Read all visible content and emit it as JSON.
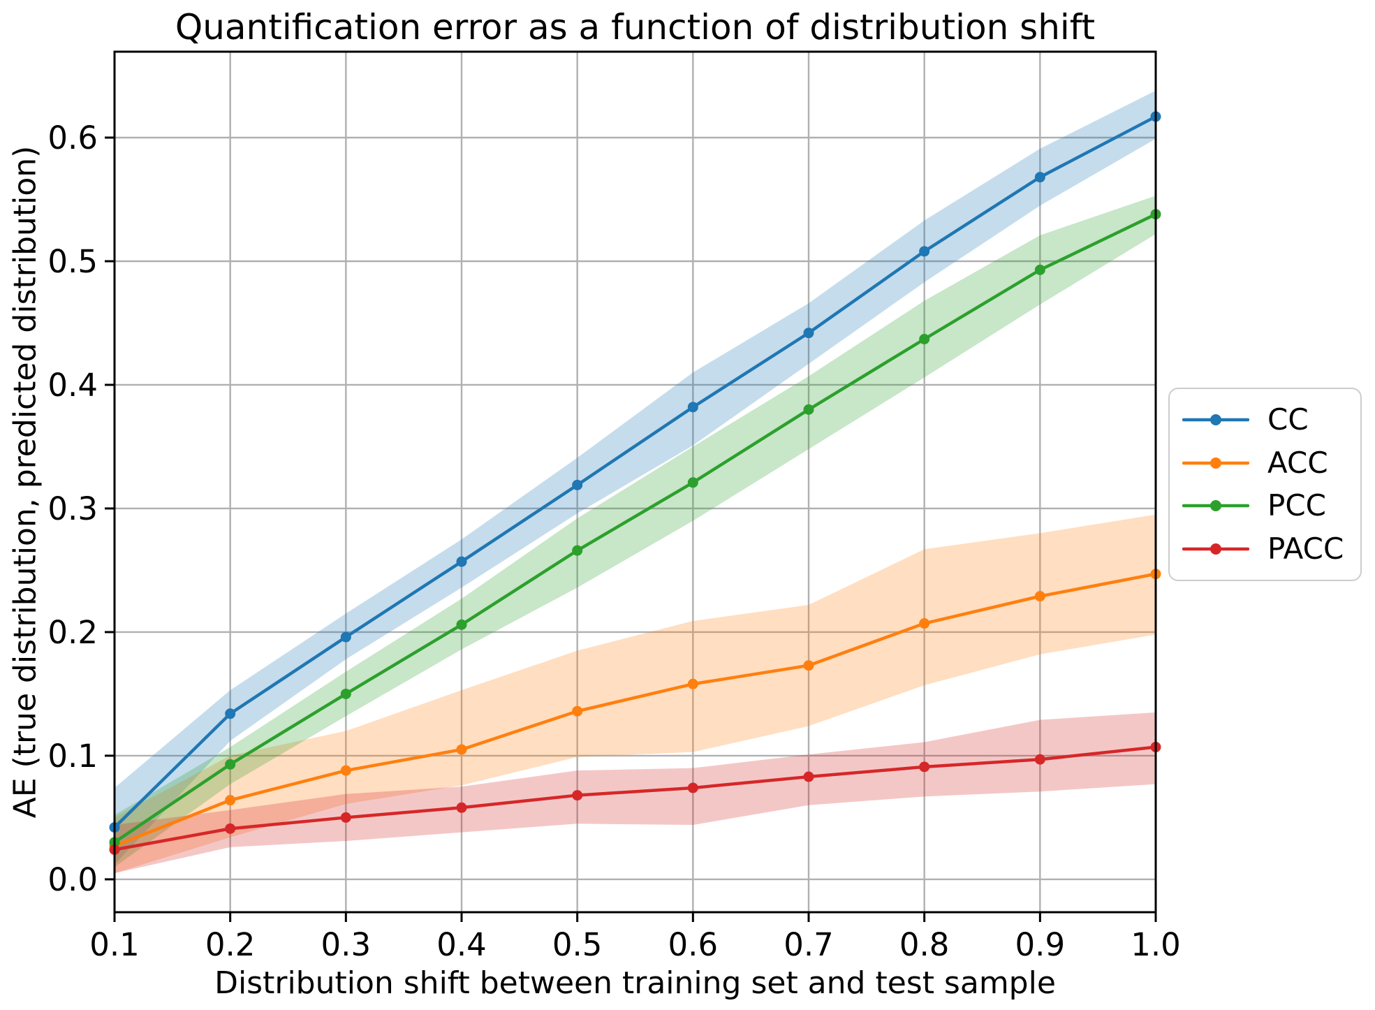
{
  "page": {
    "background_color": "#ffffff",
    "text_color": "#000000"
  },
  "chart_data": {
    "type": "line",
    "title": "Quantification error as a function of distribution shift",
    "xlabel": "Distribution shift between training set and test sample",
    "ylabel": "AE (true distribution, predicted distribution)",
    "grid": true,
    "grid_color": "#b0b0b0",
    "spine_color": "#000000",
    "background": "#ffffff",
    "xlim": [
      0.1,
      1.0
    ],
    "ylim": [
      -0.0266,
      0.6695
    ],
    "xticks": [
      0.1,
      0.2,
      0.3,
      0.4,
      0.5,
      0.6,
      0.7,
      0.8,
      0.9,
      1.0
    ],
    "xtick_labels": [
      "0.1",
      "0.2",
      "0.3",
      "0.4",
      "0.5",
      "0.6",
      "0.7",
      "0.8",
      "0.9",
      "1.0"
    ],
    "yticks": [
      0.0,
      0.1,
      0.2,
      0.3,
      0.4,
      0.5,
      0.6
    ],
    "ytick_labels": [
      "0.0",
      "0.1",
      "0.2",
      "0.3",
      "0.4",
      "0.5",
      "0.6"
    ],
    "x": [
      0.1,
      0.2,
      0.3,
      0.4,
      0.5,
      0.6,
      0.7,
      0.8,
      0.9,
      1.0
    ],
    "band_opacity": 0.26,
    "legend_position": "outside-right",
    "series": [
      {
        "name": "CC",
        "color": "#1f77b4",
        "values": [
          0.042,
          0.134,
          0.196,
          0.257,
          0.319,
          0.382,
          0.442,
          0.508,
          0.568,
          0.617
        ],
        "band_lower": [
          0.012,
          0.112,
          0.178,
          0.236,
          0.296,
          0.351,
          0.417,
          0.483,
          0.545,
          0.599
        ],
        "band_upper": [
          0.074,
          0.153,
          0.215,
          0.275,
          0.341,
          0.41,
          0.466,
          0.533,
          0.591,
          0.638
        ]
      },
      {
        "name": "ACC",
        "color": "#ff7f0e",
        "values": [
          0.027,
          0.064,
          0.088,
          0.105,
          0.136,
          0.158,
          0.173,
          0.207,
          0.229,
          0.247
        ],
        "band_lower": [
          0.005,
          0.034,
          0.061,
          0.076,
          0.099,
          0.103,
          0.124,
          0.157,
          0.182,
          0.198
        ],
        "band_upper": [
          0.05,
          0.1,
          0.12,
          0.153,
          0.185,
          0.209,
          0.222,
          0.267,
          0.28,
          0.295
        ]
      },
      {
        "name": "PCC",
        "color": "#2ca02c",
        "values": [
          0.03,
          0.093,
          0.15,
          0.206,
          0.266,
          0.321,
          0.38,
          0.437,
          0.493,
          0.538
        ],
        "band_lower": [
          0.01,
          0.077,
          0.132,
          0.186,
          0.236,
          0.29,
          0.348,
          0.406,
          0.465,
          0.522
        ],
        "band_upper": [
          0.052,
          0.107,
          0.168,
          0.227,
          0.292,
          0.35,
          0.407,
          0.468,
          0.521,
          0.553
        ]
      },
      {
        "name": "PACC",
        "color": "#d62728",
        "values": [
          0.024,
          0.041,
          0.05,
          0.058,
          0.068,
          0.074,
          0.083,
          0.091,
          0.097,
          0.107
        ],
        "band_lower": [
          0.005,
          0.026,
          0.031,
          0.038,
          0.045,
          0.044,
          0.06,
          0.067,
          0.071,
          0.077
        ],
        "band_upper": [
          0.044,
          0.056,
          0.069,
          0.075,
          0.088,
          0.09,
          0.101,
          0.111,
          0.129,
          0.135
        ]
      }
    ],
    "legend_entries": [
      "CC",
      "ACC",
      "PCC",
      "PACC"
    ]
  }
}
